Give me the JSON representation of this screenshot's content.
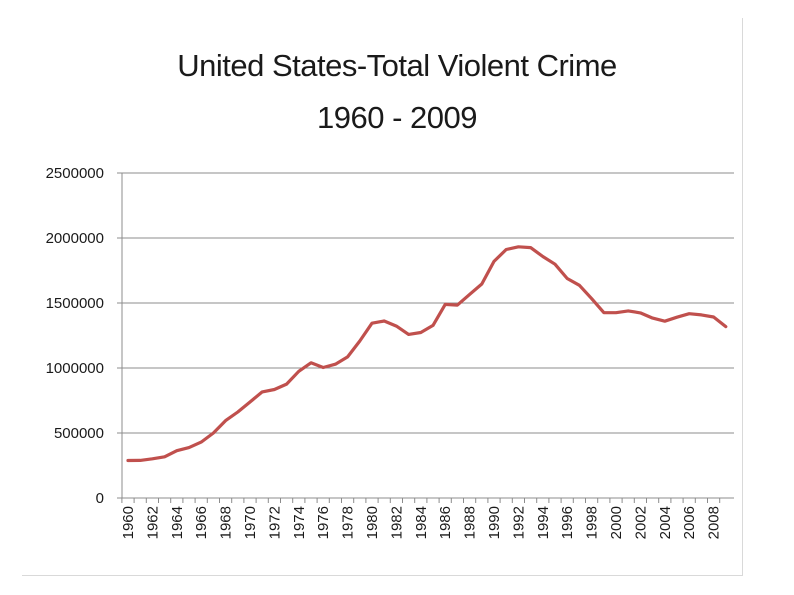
{
  "chart_data": {
    "type": "line",
    "title_line1": "United States-Total Violent Crime",
    "title_line2": "1960 - 2009",
    "xlabel": "",
    "ylabel": "",
    "ylim": [
      0,
      2500000
    ],
    "yticks": [
      0,
      500000,
      1000000,
      1500000,
      2000000,
      2500000
    ],
    "xticks": [
      1960,
      1962,
      1964,
      1966,
      1968,
      1970,
      1972,
      1974,
      1976,
      1978,
      1980,
      1982,
      1984,
      1986,
      1988,
      1990,
      1992,
      1994,
      1996,
      1998,
      2000,
      2002,
      2004,
      2006,
      2008
    ],
    "grid": true,
    "line_color": "#c0504d",
    "series": [
      {
        "x": [
          1960,
          1961,
          1962,
          1963,
          1964,
          1965,
          1966,
          1967,
          1968,
          1969,
          1970,
          1971,
          1972,
          1973,
          1974,
          1975,
          1976,
          1977,
          1978,
          1979,
          1980,
          1981,
          1982,
          1983,
          1984,
          1985,
          1986,
          1987,
          1988,
          1989,
          1990,
          1991,
          1992,
          1993,
          1994,
          1995,
          1996,
          1997,
          1998,
          1999,
          2000,
          2001,
          2002,
          2003,
          2004,
          2005,
          2006,
          2007,
          2008,
          2009
        ],
        "values": [
          288460,
          289390,
          301510,
          316970,
          364220,
          387390,
          430180,
          499930,
          595010,
          661870,
          738820,
          816500,
          834900,
          875910,
          974720,
          1039710,
          1004210,
          1029580,
          1085550,
          1208030,
          1344520,
          1361820,
          1322390,
          1258090,
          1273280,
          1327770,
          1489170,
          1483999,
          1566220,
          1646040,
          1820130,
          1911770,
          1932270,
          1926020,
          1857670,
          1798790,
          1688540,
          1636100,
          1533890,
          1426040,
          1425490,
          1439480,
          1423680,
          1383680,
          1360090,
          1390750,
          1418040,
          1408340,
          1392630,
          1318400
        ]
      }
    ]
  }
}
